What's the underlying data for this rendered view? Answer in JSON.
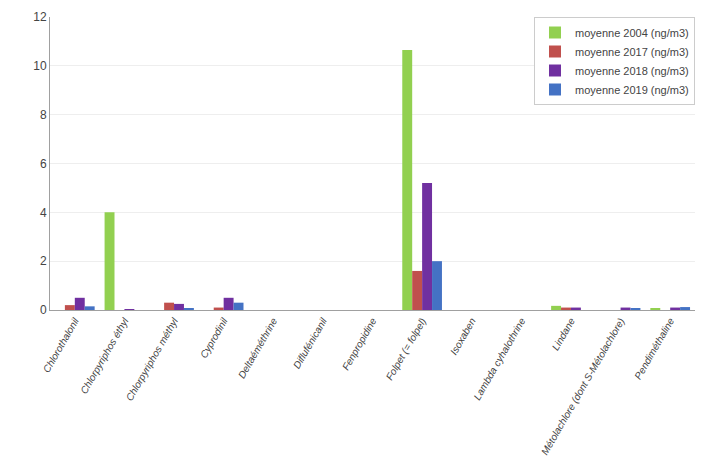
{
  "chart_data": {
    "type": "bar",
    "categories": [
      "Chlorothalonil",
      "Chlorpyriphos éthyl",
      "Chlorpyriphos méthyl",
      "Cyprodinil",
      "Deltaéméthrine",
      "Diflufénicanil",
      "Fenpropidine",
      "Folpet (= folpel)",
      "Isoxaben",
      "Lambda cyhalothrine",
      "Lindane",
      "Métolachlore (dont S-Métolachlore)",
      "Pendiméthaline"
    ],
    "series": [
      {
        "name": "moyenne 2004 (ng/m3)",
        "color": "#92d050",
        "values": [
          0.0,
          4.0,
          0.0,
          0.0,
          0.0,
          0.0,
          0.0,
          10.65,
          0.0,
          0.0,
          0.17,
          0.0,
          0.07
        ]
      },
      {
        "name": "moyenne 2017 (ng/m3)",
        "color": "#c0504d",
        "values": [
          0.2,
          0.0,
          0.3,
          0.1,
          0.0,
          0.0,
          0.0,
          1.6,
          0.0,
          0.0,
          0.1,
          0.0,
          0.0
        ]
      },
      {
        "name": "moyenne 2018 (ng/m3)",
        "color": "#7030a0",
        "values": [
          0.5,
          0.03,
          0.25,
          0.5,
          0.0,
          0.0,
          0.0,
          5.2,
          0.0,
          0.0,
          0.1,
          0.1,
          0.1
        ]
      },
      {
        "name": "moyenne 2019 (ng/m3)",
        "color": "#4472c4",
        "values": [
          0.15,
          0.0,
          0.07,
          0.3,
          0.0,
          0.0,
          0.0,
          2.0,
          0.0,
          0.0,
          0.0,
          0.08,
          0.12
        ]
      }
    ],
    "ylim": [
      0,
      12
    ],
    "yticks": [
      0,
      2,
      4,
      6,
      8,
      10,
      12
    ],
    "grid": true,
    "legend": "upper right"
  }
}
